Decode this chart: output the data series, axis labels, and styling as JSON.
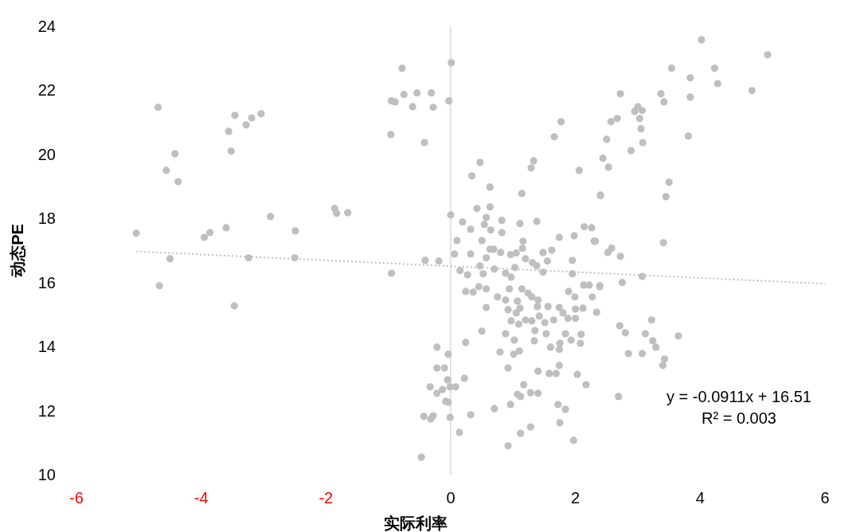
{
  "chart_data": {
    "type": "scatter",
    "xlabel": "实际利率",
    "ylabel": "动态PE",
    "xlim": [
      -6,
      6
    ],
    "ylim": [
      10,
      24
    ],
    "xticks": [
      -6,
      -4,
      -2,
      0,
      2,
      4,
      6
    ],
    "yticks": [
      10,
      12,
      14,
      16,
      18,
      20,
      22,
      24
    ],
    "marker": "circle",
    "annotations": [
      "y = -0.0911x + 16.51",
      "R² = 0.003"
    ],
    "series": [
      {
        "type": "scatter",
        "color": "#bfbfbf",
        "x": [
          -5.04,
          -4.69,
          -4.67,
          -4.56,
          -4.5,
          -4.42,
          -4.37,
          -3.95,
          -3.86,
          -3.6,
          -3.56,
          -3.52,
          -3.46,
          -3.47,
          -3.28,
          -3.24,
          -3.19,
          -3.04,
          -2.89,
          -2.49,
          -2.5,
          -1.86,
          -1.83,
          -1.65,
          -0.95,
          -0.96,
          -0.95,
          -0.89,
          -0.78,
          -0.75,
          -0.61,
          -0.54,
          -0.42,
          -0.31,
          -0.28,
          -0.41,
          -0.19,
          -0.03,
          0.01,
          0.0,
          -0.22,
          -0.04,
          0.24,
          0.5,
          -0.22,
          -0.1,
          -0.05,
          0.22,
          -0.33,
          -0.22,
          -0.13,
          -0.01,
          0.08,
          -0.08,
          -0.04,
          -0.43,
          -0.28,
          -0.32,
          -0.01,
          0.32,
          0.14,
          -0.47,
          0.7,
          0.96,
          0.92,
          1.12,
          1.28,
          1.07,
          1.12,
          1.17,
          1.28,
          1.4,
          0.92,
          0.79,
          1.01,
          1.1,
          1.02,
          0.88,
          1.4,
          1.58,
          1.69,
          1.74,
          1.6,
          1.74,
          1.75,
          1.53,
          1.34,
          1.35,
          1.84,
          1.93,
          2.08,
          2.09,
          2.03,
          2.17,
          1.72,
          1.84,
          1.75,
          1.97,
          0.19,
          0.42,
          0.63,
          0.57,
          0.54,
          0.32,
          0.64,
          0.82,
          0.82,
          1.11,
          1.14,
          1.38,
          0.1,
          0.5,
          0.06,
          0.32,
          0.63,
          0.69,
          0.8,
          0.57,
          0.96,
          1.05,
          1.16,
          1.15,
          1.48,
          1.62,
          1.74,
          1.98,
          2.14,
          2.3,
          2.4,
          1.55,
          1.95,
          1.2,
          1.31,
          1.38,
          0.15,
          0.27,
          0.52,
          0.47,
          0.7,
          0.88,
          0.97,
          1.03,
          1.48,
          1.95,
          0.24,
          0.36,
          0.45,
          0.57,
          0.94,
          1.14,
          0.75,
          0.88,
          0.57,
          1.24,
          1.3,
          1.4,
          1.07,
          1.11,
          0.92,
          1.39,
          1.56,
          1.89,
          1.99,
          2.13,
          2.22,
          2.39,
          2.27,
          2.34,
          1.74,
          1.8,
          2.0,
          2.12,
          1.88,
          2.0,
          0.97,
          1.09,
          1.2,
          1.3,
          1.42,
          1.51,
          1.05,
          1.65,
          4.02,
          5.08,
          3.54,
          4.23,
          3.84,
          4.28,
          4.83,
          2.72,
          3.37,
          3.42,
          3.84,
          3.0,
          2.95,
          3.07,
          3.03,
          2.67,
          2.57,
          3.05,
          2.5,
          3.08,
          2.89,
          3.81,
          2.44,
          2.53,
          3.5,
          2.4,
          3.45,
          1.77,
          1.66,
          0.47,
          0.34,
          1.33,
          1.29,
          2.06,
          0.63,
          2.26,
          2.32,
          2.58,
          2.52,
          2.72,
          3.41,
          3.07,
          2.75,
          2.39,
          2.71,
          2.8,
          3.22,
          3.12,
          3.24,
          3.29,
          3.65,
          2.85,
          3.07,
          3.43,
          3.4,
          2.69
        ],
        "values": [
          17.54,
          21.47,
          15.9,
          19.5,
          16.74,
          20.02,
          19.15,
          17.41,
          17.56,
          17.71,
          20.72,
          20.1,
          21.22,
          15.27,
          20.92,
          16.77,
          21.14,
          21.27,
          18.06,
          17.61,
          16.77,
          18.31,
          18.16,
          18.18,
          16.29,
          20.62,
          21.67,
          21.64,
          22.69,
          21.87,
          21.49,
          21.92,
          20.37,
          21.92,
          21.47,
          16.69,
          16.67,
          21.67,
          22.86,
          18.11,
          13.98,
          13.76,
          14.13,
          14.48,
          13.33,
          13.33,
          12.96,
          13.01,
          12.74,
          12.54,
          12.66,
          12.74,
          12.74,
          12.29,
          12.26,
          11.82,
          11.84,
          11.74,
          11.79,
          11.87,
          11.32,
          10.55,
          12.06,
          12.19,
          10.9,
          11.29,
          11.49,
          12.51,
          12.44,
          12.81,
          12.56,
          12.54,
          13.33,
          13.83,
          13.76,
          13.86,
          14.2,
          14.4,
          13.23,
          13.16,
          13.16,
          13.41,
          13.98,
          13.91,
          14.1,
          14.4,
          14.18,
          14.5,
          14.4,
          14.2,
          14.1,
          14.38,
          13.13,
          12.81,
          12.19,
          12.04,
          11.62,
          11.07,
          17.89,
          18.31,
          18.36,
          18.03,
          17.81,
          17.66,
          17.64,
          17.94,
          17.56,
          17.84,
          18.78,
          17.91,
          17.31,
          17.31,
          16.89,
          16.89,
          17.04,
          17.04,
          16.94,
          16.77,
          16.87,
          16.92,
          17.29,
          17.07,
          16.94,
          17.01,
          17.41,
          17.46,
          17.74,
          17.29,
          18.73,
          16.67,
          16.69,
          16.74,
          16.62,
          16.52,
          16.37,
          16.24,
          16.27,
          16.52,
          16.42,
          16.29,
          16.17,
          16.47,
          16.32,
          16.27,
          15.72,
          15.7,
          15.87,
          15.8,
          15.8,
          15.8,
          15.55,
          15.45,
          15.22,
          15.67,
          15.55,
          15.45,
          15.42,
          15.2,
          15.15,
          15.25,
          15.25,
          15.72,
          15.55,
          15.92,
          15.92,
          15.9,
          15.55,
          15.07,
          15.22,
          15.05,
          15.17,
          15.2,
          14.88,
          14.88,
          14.8,
          14.7,
          14.83,
          14.8,
          14.95,
          14.75,
          15.05,
          14.83,
          23.58,
          23.11,
          22.69,
          22.69,
          22.39,
          22.21,
          21.99,
          21.89,
          21.89,
          21.64,
          21.79,
          21.49,
          21.34,
          21.37,
          21.12,
          21.12,
          21.02,
          20.8,
          20.47,
          20.37,
          20.12,
          20.57,
          19.88,
          19.6,
          19.13,
          18.71,
          18.68,
          21.02,
          20.55,
          19.75,
          19.33,
          19.8,
          19.58,
          19.5,
          18.98,
          17.71,
          17.29,
          17.07,
          16.94,
          16.82,
          17.24,
          16.19,
          16.0,
          15.87,
          14.65,
          14.43,
          14.83,
          14.4,
          14.18,
          13.98,
          14.33,
          13.78,
          13.78,
          13.61,
          13.41,
          12.44
        ]
      },
      {
        "type": "line",
        "color": "#bfbfbf",
        "line_style": "dotted",
        "marker": "none",
        "x": [
          -5.04,
          6
        ],
        "values": [
          16.97,
          15.96
        ]
      }
    ]
  }
}
